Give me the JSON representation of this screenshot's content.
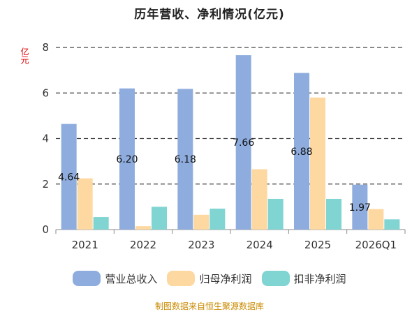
{
  "title": "历年营收、净利情况(亿元)",
  "source": "制图数据来自恒生聚源数据库",
  "colors": {
    "grid": "#444444",
    "axis": "#888888"
  },
  "chart_data": {
    "type": "bar",
    "title": "历年营收、净利情况(亿元)",
    "ylabel": "亿元",
    "ylim": [
      0,
      8
    ],
    "yticks": [
      "0",
      "2",
      "4",
      "6",
      "8"
    ],
    "grid": "dashed horizontal",
    "legend_position": "bottom",
    "categories": [
      "2021",
      "2022",
      "2023",
      "2024",
      "2025",
      "2026Q1"
    ],
    "series": [
      {
        "name": "营业总收入",
        "color": "#8eadde",
        "values": [
          4.64,
          6.2,
          6.18,
          7.66,
          6.88,
          1.97
        ]
      },
      {
        "name": "归母净利润",
        "color": "#fdd8a0",
        "values": [
          2.25,
          0.15,
          0.65,
          2.65,
          5.8,
          0.9
        ]
      },
      {
        "name": "扣非净利润",
        "color": "#80d4d2",
        "values": [
          0.55,
          1.0,
          0.92,
          1.35,
          1.35,
          0.45
        ]
      }
    ],
    "data_labels": [
      {
        "category": "2021",
        "series": "营业总收入",
        "text": "4.64"
      },
      {
        "category": "2022",
        "series": "营业总收入",
        "text": "6.20"
      },
      {
        "category": "2023",
        "series": "营业总收入",
        "text": "6.18"
      },
      {
        "category": "2024",
        "series": "营业总收入",
        "text": "7.66"
      },
      {
        "category": "2025",
        "series": "营业总收入",
        "text": "6.88"
      },
      {
        "category": "2026Q1",
        "series": "营业总收入",
        "text": "1.97"
      }
    ]
  }
}
